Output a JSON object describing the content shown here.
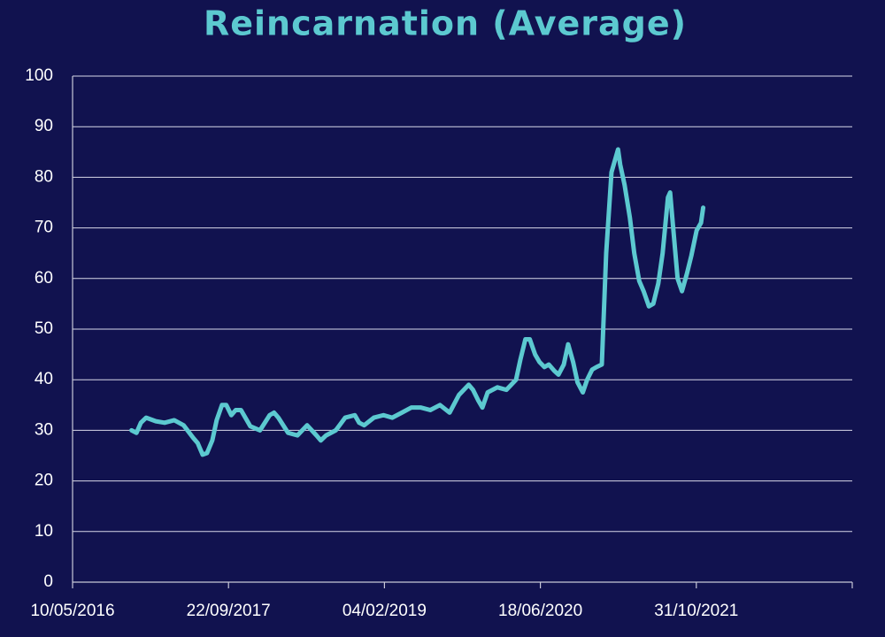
{
  "chart_data": {
    "type": "line",
    "title": "Reincarnation (Average)",
    "x": [
      "2016-11-15",
      "2016-12-01",
      "2016-12-15",
      "2017-01-01",
      "2017-02-01",
      "2017-03-01",
      "2017-04-01",
      "2017-05-01",
      "2017-06-01",
      "2017-06-15",
      "2017-07-01",
      "2017-07-15",
      "2017-08-01",
      "2017-08-15",
      "2017-09-01",
      "2017-09-15",
      "2017-10-01",
      "2017-10-15",
      "2017-11-01",
      "2017-12-01",
      "2018-01-01",
      "2018-02-01",
      "2018-02-15",
      "2018-03-01",
      "2018-04-01",
      "2018-05-01",
      "2018-06-01",
      "2018-07-01",
      "2018-07-15",
      "2018-08-01",
      "2018-09-01",
      "2018-10-01",
      "2018-11-01",
      "2018-11-15",
      "2018-12-01",
      "2019-01-01",
      "2019-02-01",
      "2019-03-01",
      "2019-04-01",
      "2019-05-01",
      "2019-06-01",
      "2019-07-01",
      "2019-08-01",
      "2019-09-01",
      "2019-10-01",
      "2019-11-01",
      "2019-11-15",
      "2019-12-01",
      "2019-12-15",
      "2020-01-01",
      "2020-02-01",
      "2020-03-01",
      "2020-04-01",
      "2020-04-15",
      "2020-05-01",
      "2020-05-15",
      "2020-06-01",
      "2020-06-15",
      "2020-07-01",
      "2020-07-15",
      "2020-08-01",
      "2020-08-15",
      "2020-09-01",
      "2020-09-15",
      "2020-10-01",
      "2020-10-15",
      "2020-11-01",
      "2020-11-15",
      "2020-12-01",
      "2020-12-15",
      "2021-01-01",
      "2021-01-15",
      "2021-02-01",
      "2021-02-15",
      "2021-02-22",
      "2021-03-01",
      "2021-03-15",
      "2021-04-01",
      "2021-04-15",
      "2021-05-01",
      "2021-05-15",
      "2021-06-01",
      "2021-06-15",
      "2021-07-01",
      "2021-07-15",
      "2021-08-01",
      "2021-08-08",
      "2021-08-15",
      "2021-09-01",
      "2021-09-15",
      "2021-10-01",
      "2021-10-15",
      "2021-11-01",
      "2021-11-15",
      "2021-11-22"
    ],
    "series": [
      {
        "name": "Reincarnation",
        "color": "#5cc9d0",
        "values": [
          30,
          29.5,
          31.5,
          32.5,
          31.8,
          31.5,
          32,
          31,
          28.5,
          27.5,
          25.2,
          25.5,
          28,
          32,
          35,
          35,
          33,
          34,
          34,
          30.8,
          30,
          33,
          33.5,
          32.5,
          29.5,
          29,
          31,
          29,
          28,
          29,
          30,
          32.5,
          33,
          31.5,
          31,
          32.5,
          33,
          32.5,
          33.5,
          34.5,
          34.5,
          34,
          35,
          33.5,
          37,
          39,
          38,
          36,
          34.5,
          37.5,
          38.5,
          38,
          40,
          44,
          48,
          48,
          45,
          43.5,
          42.5,
          43,
          41.8,
          41,
          43,
          47,
          43.5,
          39.5,
          37.5,
          40,
          42,
          42.5,
          43,
          65,
          81,
          84,
          85.5,
          82.5,
          78.5,
          72,
          65,
          59.5,
          57.5,
          54.5,
          55,
          59,
          65,
          76,
          77,
          72,
          60,
          57.5,
          61,
          64.5,
          69.5,
          71,
          74
        ]
      }
    ],
    "xlim": [
      "2016-05-10",
      "2023-03-15"
    ],
    "xticks": [
      {
        "value": "2016-05-10",
        "label": "10/05/2016"
      },
      {
        "value": "2017-09-22",
        "label": "22/09/2017"
      },
      {
        "value": "2019-02-04",
        "label": "04/02/2019"
      },
      {
        "value": "2020-06-18",
        "label": "18/06/2020"
      },
      {
        "value": "2021-10-31",
        "label": "31/10/2021"
      }
    ],
    "ylim": [
      0,
      100
    ],
    "yticks": [
      0,
      10,
      20,
      30,
      40,
      50,
      60,
      70,
      80,
      90,
      100
    ],
    "grid": true
  }
}
